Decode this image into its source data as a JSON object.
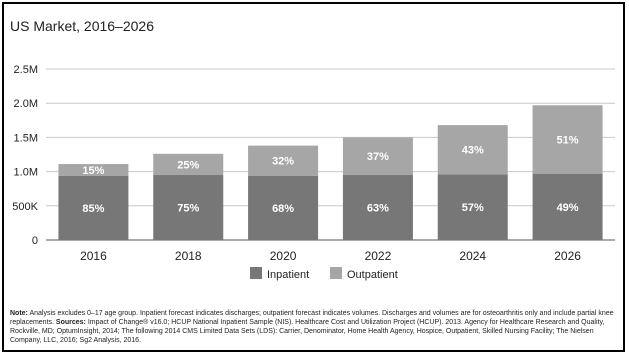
{
  "chart_data": {
    "type": "bar",
    "title": "US Market, 2016–2026",
    "categories": [
      "2016",
      "2018",
      "2020",
      "2022",
      "2024",
      "2026"
    ],
    "series": [
      {
        "name": "Inpatient",
        "values": [
          0.94,
          0.95,
          0.94,
          0.95,
          0.96,
          0.97
        ],
        "labels": [
          "85%",
          "75%",
          "68%",
          "63%",
          "57%",
          "49%"
        ],
        "color": "#777777"
      },
      {
        "name": "Outpatient",
        "values": [
          0.17,
          0.31,
          0.44,
          0.55,
          0.72,
          1.0
        ],
        "labels": [
          "15%",
          "25%",
          "32%",
          "37%",
          "43%",
          "51%"
        ],
        "color": "#a6a6a6"
      }
    ],
    "stacked": true,
    "ylim": [
      0,
      2.5
    ],
    "yticks": [
      0,
      0.5,
      1.0,
      1.5,
      2.0,
      2.5
    ],
    "ytick_labels": [
      "0",
      "500K",
      "1.0M",
      "1.5M",
      "2.0M",
      "2.5M"
    ],
    "grid": true,
    "legend_position": "bottom",
    "xlabel": "",
    "ylabel": ""
  },
  "note": {
    "label_note": "Note:",
    "text_note": " Analysis excludes 0–17 age group. Inpatient forecast indicates discharges; outpatient forecast indicates volumes. Discharges and volumes are for osteoarthritis only and include partial knee replacements.",
    "label_sources": "Sources:",
    "text_sources": " Impact of Change® v16.0; HCUP National Inpatient Sample (NIS). Healthcare Cost and Utilization Project (HCUP). 2013. Agency for Healthcare Research and Quality, Rockville, MD; OptumInsight, 2014; The following 2014 CMS Limited Data Sets (LDS): Carrier, Denominator, Home Health Agency, Hospice, Outpatient, Skilled Nursing Facility; The Nielsen Company, LLC, 2016; Sg2 Analysis, 2016."
  }
}
